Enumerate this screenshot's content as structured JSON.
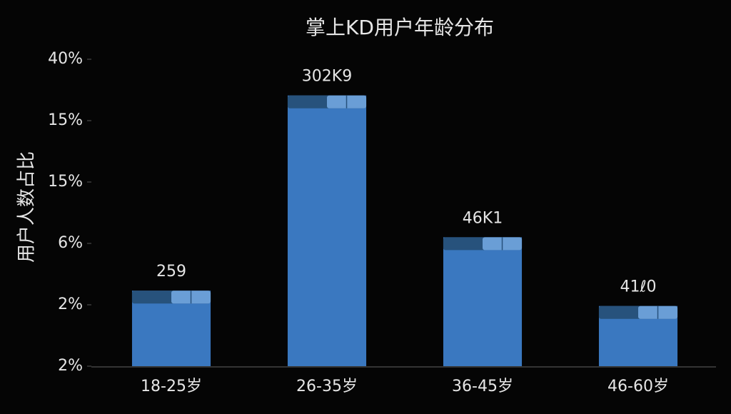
{
  "chart_data": {
    "type": "bar",
    "title": "掌上KD用户年龄分布",
    "y_label": "用户人数占比",
    "categories": [
      "18-25岁",
      "26-35岁",
      "36-45岁",
      "46-60岁"
    ],
    "values": [
      1.23,
      4.41,
      2.1,
      0.98
    ],
    "annotations": [
      "259",
      "302K9",
      "46K1",
      "41ℓ0"
    ],
    "color": "#3a78c0",
    "ylim": [
      0,
      5
    ],
    "yticks": [
      {
        "value": 0,
        "label": "2%"
      },
      {
        "value": 1,
        "label": "2%"
      },
      {
        "value": 2,
        "label": "6%"
      },
      {
        "value": 3,
        "label": "15%"
      },
      {
        "value": 4,
        "label": "15%"
      },
      {
        "value": 5,
        "label": "40%"
      }
    ],
    "grid": false
  }
}
